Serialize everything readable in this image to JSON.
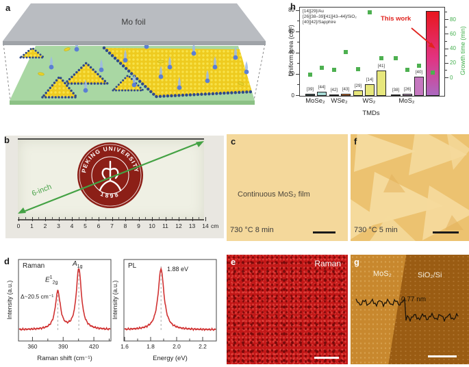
{
  "css_vars": {
    "--c-bg": "#f4d89b",
    "--f-bg": "#ecc270",
    "--f-tri": "#f5da9c",
    "--f-tri-dark": "#e4b35c",
    "--e-base": "#c21717",
    "--g-left": "#c8882e",
    "--g-right": "#9a5c13",
    "--photo-bg": "#e9e7e1",
    "--slide-bg": "#eff0e4",
    "--seal": "#8c1f17",
    "--arrow-green": "#44a244",
    "--h-red": "#e0231e",
    "--a-foil": "#b9bcc1",
    "--a-foil-edge": "#9fa3a8",
    "--a-sub": "#a9d7a3",
    "--a-sub-edge": "#8cc185",
    "--a-dom": "#eecb1f",
    "--a-dom-dot": "#f8e24a",
    "--a-edge": "#2f4a8c",
    "--a-drop": "#5b7fd4",
    "--a-drop-tail": "#9db8e8",
    "--a-particle": "#e8d22a"
  },
  "panels": {
    "a": {
      "label": "a",
      "foil_label": "Mo foil"
    },
    "b": {
      "label": "b",
      "arrow_label": "6-inch",
      "seal": {
        "ring_text": "PEKING UNIVERSITY",
        "year": "1898"
      },
      "ruler": {
        "ticks": [
          "0",
          "1",
          "2",
          "3",
          "4",
          "5",
          "6",
          "7",
          "8",
          "9",
          "10",
          "11",
          "12",
          "13",
          "14"
        ],
        "unit": "cm"
      }
    },
    "c": {
      "label": "c",
      "caption": "Continuous MoS₂ film",
      "condition": "730 °C 8 min"
    },
    "d": {
      "label": "d"
    },
    "e": {
      "label": "e",
      "caption": "Raman"
    },
    "f": {
      "label": "f",
      "condition": "730 °C 5 min"
    },
    "g": {
      "label": "g",
      "left_label": "MoS₂",
      "right_label": "SiO₂/Si",
      "step_label": "0.77 nm"
    },
    "h": {
      "label": "h"
    }
  },
  "chart_data": [
    {
      "id": "tmd_comparison",
      "type": "bar+scatter",
      "xlabel": "TMDs",
      "ylabel_left": "Uniform area (cm²)",
      "ylabel_right": "Growth time (min)",
      "yticks_left": [
        0,
        20,
        40,
        60,
        80
      ],
      "yticks_right": [
        0,
        20,
        40,
        60,
        80
      ],
      "ylim_left": [
        0,
        83
      ],
      "ylim_right": [
        0,
        95
      ],
      "legend": [
        "[14][29]/Au",
        "[26][38–39][41][43–44]/SiO₂",
        "[40][42]/Sapphire"
      ],
      "highlight_label": "This work",
      "marker_color": "#4db050",
      "axis_right_color": "#3fae4a",
      "groups": [
        {
          "name": "MoSe₂",
          "bars": [
            {
              "ref": "[39]",
              "area_cm2": 2,
              "time_min": 5,
              "color": "#50625f"
            },
            {
              "ref": "[44]",
              "area_cm2": 4,
              "time_min": 14,
              "color": "#a7dad5"
            }
          ]
        },
        {
          "name": "WSe₂",
          "bars": [
            {
              "ref": "[42]",
              "area_cm2": 1.5,
              "time_min": 11,
              "color": "#e07a33"
            },
            {
              "ref": "[43]",
              "area_cm2": 2,
              "time_min": 36,
              "color": "#e07a33"
            }
          ]
        },
        {
          "name": "WS₂",
          "bars": [
            {
              "ref": "[29]",
              "area_cm2": 5,
              "time_min": 12,
              "color": "#e7e77c"
            },
            {
              "ref": "[14]",
              "area_cm2": 11,
              "time_min": 90,
              "color": "#e7e77c"
            },
            {
              "ref": "[41]",
              "area_cm2": 24,
              "time_min": 27,
              "color": "#e7e77c"
            }
          ]
        },
        {
          "name": "MoS₂",
          "bars": [
            {
              "ref": "[38]",
              "area_cm2": 1.5,
              "time_min": 27,
              "color": "#c4a3c8"
            },
            {
              "ref": "[26]",
              "area_cm2": 2,
              "time_min": 11,
              "color": "#c4a3c8"
            },
            {
              "ref": "[40]",
              "area_cm2": 18,
              "time_min": 17,
              "color": "#c678c0"
            }
          ]
        },
        {
          "name": "",
          "bars": [
            {
              "ref": "This work",
              "area_cm2": 80,
              "time_min": 8,
              "highlight": true,
              "gradient": [
                "#e8171e",
                "#e23380",
                "#ad68c0"
              ]
            }
          ]
        }
      ]
    },
    {
      "id": "raman_spectrum",
      "type": "line",
      "title": "Raman",
      "xlabel": "Raman shift (cm⁻¹)",
      "ylabel": "Intensity (a.u.)",
      "xlim": [
        347,
        436
      ],
      "xticks": [
        360,
        390,
        420
      ],
      "xtick_labels": [
        "360",
        "390",
        "420"
      ],
      "peaks": [
        {
          "label_main": "E",
          "label_sup": "1",
          "label_sub": "2g",
          "center": 384.8,
          "fwhm": 6,
          "height": 0.62
        },
        {
          "label_main": "A",
          "label_sup": "",
          "label_sub": "1g",
          "center": 405.3,
          "fwhm": 6,
          "height": 1.0
        }
      ],
      "annotation": "Δ~20.5 cm⁻¹",
      "line_color": "#d03030"
    },
    {
      "id": "pl_spectrum",
      "type": "line",
      "title": "PL",
      "xlabel": "Energy (eV)",
      "ylabel": "Intensity (a.u.)",
      "xlim": [
        1.6,
        2.3
      ],
      "xticks": [
        1.6,
        1.8,
        2.0,
        2.2
      ],
      "xtick_labels": [
        "1.6",
        "1.8",
        "2.0",
        "2.2"
      ],
      "peaks": [
        {
          "label": "1.88 eV",
          "center": 1.88,
          "fwhm": 0.055,
          "height": 1.0
        }
      ],
      "line_color": "#d03030"
    }
  ]
}
